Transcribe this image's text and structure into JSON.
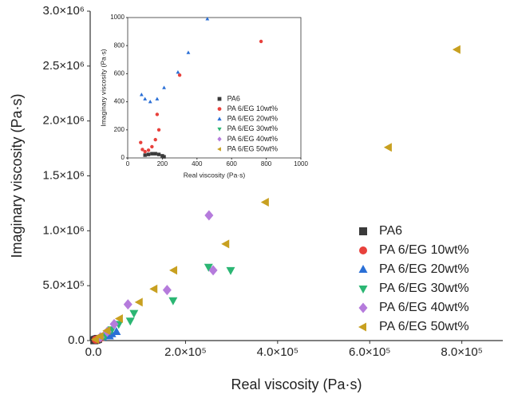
{
  "chart_data": [
    {
      "type": "scatter",
      "x_label": "Real viscosity (Pa·s)",
      "y_label": "Imaginary viscosity (Pa·s)",
      "xlim": [
        -7000,
        889000
      ],
      "ylim": [
        0,
        3000000
      ],
      "xticks": [
        {
          "value": 0,
          "label": "0.0"
        },
        {
          "value": 200000,
          "label": "2.0×10⁵"
        },
        {
          "value": 400000,
          "label": "4.0×10⁵"
        },
        {
          "value": 600000,
          "label": "6.0×10⁵"
        },
        {
          "value": 800000,
          "label": "8.0×10⁵"
        }
      ],
      "yticks": [
        {
          "value": 0,
          "label": "0.0"
        },
        {
          "value": 500000,
          "label": "5.0×10⁵"
        },
        {
          "value": 1000000,
          "label": "1.0×10⁶"
        },
        {
          "value": 1500000,
          "label": "1.5×10⁶"
        },
        {
          "value": 2000000,
          "label": "2.0×10⁶"
        },
        {
          "value": 2500000,
          "label": "2.5×10⁶"
        },
        {
          "value": 3000000,
          "label": "3.0×10⁶"
        }
      ],
      "legend": "lower right",
      "series": [
        {
          "name": "PA6",
          "color": "#3a3a3a",
          "marker": "square",
          "x": [
            2000,
            4000,
            6000,
            8000,
            10000
          ],
          "values": [
            3000,
            6000,
            9000,
            12000,
            15000
          ]
        },
        {
          "name": "PA 6/EG 10wt%",
          "color": "#e8413c",
          "marker": "circle",
          "x": [
            5000,
            10000,
            15000,
            20000
          ],
          "values": [
            8000,
            15000,
            25000,
            30000
          ]
        },
        {
          "name": "PA 6/EG 20wt%",
          "color": "#2a6fd6",
          "marker": "triangle-up",
          "x": [
            20000,
            30000,
            35000,
            40000,
            50000
          ],
          "values": [
            30000,
            45000,
            40000,
            60000,
            80000
          ]
        },
        {
          "name": "PA 6/EG 30wt%",
          "color": "#2bb673",
          "marker": "triangle-down",
          "x": [
            25000,
            40000,
            55000,
            80000,
            88000,
            173000,
            250000,
            298000
          ],
          "values": [
            40000,
            100000,
            150000,
            180000,
            250000,
            365000,
            670000,
            640000
          ]
        },
        {
          "name": "PA 6/EG 40wt%",
          "color": "#b57bdc",
          "marker": "diamond",
          "x": [
            15000,
            30000,
            45000,
            75000,
            160000,
            251000,
            260000
          ],
          "values": [
            30000,
            80000,
            150000,
            330000,
            460000,
            1140000,
            640000
          ]
        },
        {
          "name": "PA 6/EG 50wt%",
          "color": "#c8a020",
          "marker": "triangle-left",
          "x": [
            5000,
            15000,
            30000,
            57000,
            100000,
            132000,
            175000,
            288000,
            374000,
            641000,
            790000
          ],
          "values": [
            10000,
            40000,
            90000,
            200000,
            350000,
            470000,
            640000,
            880000,
            1260000,
            1760000,
            2650000
          ]
        }
      ]
    },
    {
      "type": "scatter",
      "x_label": "Real viscosity (Pa·s)",
      "y_label": "Imaginary viscosity (Pa·s)",
      "xlim": [
        0,
        1000
      ],
      "ylim": [
        0,
        1000
      ],
      "xticks": [
        0,
        200,
        400,
        600,
        800,
        1000
      ],
      "yticks": [
        0,
        200,
        400,
        600,
        800,
        1000
      ],
      "legend": "lower right",
      "series": [
        {
          "name": "PA6",
          "color": "#3a3a3a",
          "marker": "square",
          "x": [
            100,
            120,
            140,
            160,
            180,
            200,
            210
          ],
          "values": [
            20,
            25,
            30,
            30,
            25,
            15,
            8
          ]
        },
        {
          "name": "PA 6/EG 10wt%",
          "color": "#e8413c",
          "marker": "circle",
          "x": [
            75,
            85,
            100,
            120,
            140,
            160,
            180,
            170,
            300,
            770
          ],
          "values": [
            110,
            60,
            45,
            55,
            80,
            130,
            200,
            310,
            590,
            830
          ]
        },
        {
          "name": "PA 6/EG 20wt%",
          "color": "#2a6fd6",
          "marker": "triangle-up",
          "x": [
            80,
            100,
            130,
            170,
            210,
            290,
            350,
            460
          ],
          "values": [
            450,
            420,
            400,
            420,
            500,
            610,
            750,
            990
          ]
        },
        {
          "name": "PA 6/EG 30wt%",
          "color": "#2bb673",
          "marker": "triangle-down",
          "x": [],
          "values": []
        },
        {
          "name": "PA 6/EG 40wt%",
          "color": "#b57bdc",
          "marker": "diamond",
          "x": [],
          "values": []
        },
        {
          "name": "PA 6/EG 50wt%",
          "color": "#c8a020",
          "marker": "triangle-left",
          "x": [],
          "values": []
        }
      ]
    }
  ]
}
